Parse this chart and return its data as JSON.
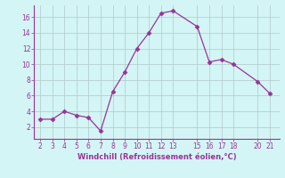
{
  "x": [
    2,
    3,
    4,
    5,
    6,
    7,
    8,
    9,
    10,
    11,
    12,
    13,
    15,
    16,
    17,
    18,
    20,
    21
  ],
  "y": [
    3.0,
    3.0,
    4.0,
    3.5,
    3.2,
    1.5,
    6.5,
    9.0,
    12.0,
    14.0,
    16.5,
    16.8,
    14.8,
    10.3,
    10.6,
    10.0,
    7.8,
    6.3
  ],
  "line_color": "#993399",
  "marker_color": "#993399",
  "bg_color": "#d4f5f5",
  "grid_color": "#b0c8c8",
  "xlabel": "Windchill (Refroidissement éolien,°C)",
  "xlabel_color": "#993399",
  "tick_color": "#993399",
  "xlim": [
    1.5,
    21.8
  ],
  "ylim": [
    0.5,
    17.5
  ],
  "xticks": [
    2,
    3,
    4,
    5,
    6,
    7,
    8,
    9,
    10,
    11,
    12,
    13,
    15,
    16,
    17,
    18,
    20,
    21
  ],
  "yticks": [
    2,
    4,
    6,
    8,
    10,
    12,
    14,
    16
  ]
}
